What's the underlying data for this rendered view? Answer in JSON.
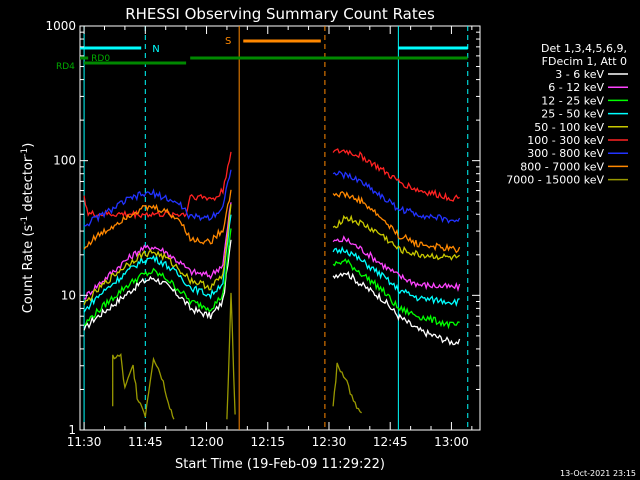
{
  "chart_data": {
    "type": "line",
    "title": "RHESSI Observing Summary Count Rates",
    "xlabel": "Start Time (19-Feb-09 11:29:22)",
    "ylabel": "Count Rate (s",
    "ylabel_sup": "-1",
    "ylabel_tail": " detector",
    "ylabel_close": ")",
    "yscale": "log",
    "ylim": [
      1,
      1000
    ],
    "xlim": [
      "11:29",
      "13:07"
    ],
    "y_ticks": [
      "1",
      "10",
      "100",
      "1000"
    ],
    "x_ticks": [
      "11:30",
      "11:45",
      "12:00",
      "12:15",
      "12:30",
      "12:45",
      "13:00"
    ],
    "legend": {
      "position": "right",
      "header": [
        "Det 1,3,4,5,6,9,",
        "FDecim 1, Att 0"
      ]
    },
    "series": [
      {
        "name": "3 - 6 keV",
        "color": "#ffffff",
        "values": [
          [
            "11:30",
            5.5
          ],
          [
            "11:32",
            6.5
          ],
          [
            "11:36",
            8
          ],
          [
            "11:40",
            10
          ],
          [
            "11:44",
            12.5
          ],
          [
            "11:47",
            13.5
          ],
          [
            "11:50",
            12
          ],
          [
            "11:54",
            9.5
          ],
          [
            "11:56",
            8
          ],
          [
            "12:01",
            7
          ],
          [
            "12:04",
            9
          ],
          [
            "12:06",
            25
          ],
          [
            "12:08",
            null
          ],
          [
            "12:31",
            14
          ],
          [
            "12:34",
            15
          ],
          [
            "12:38",
            12
          ],
          [
            "12:43",
            9.5
          ],
          [
            "12:47",
            7
          ],
          [
            "12:52",
            5.5
          ],
          [
            "13:00",
            4.5
          ],
          [
            "13:02",
            4.5
          ]
        ]
      },
      {
        "name": "6 - 12 keV",
        "color": "#ff44ff",
        "values": [
          [
            "11:30",
            9.5
          ],
          [
            "11:32",
            11
          ],
          [
            "11:36",
            14
          ],
          [
            "11:40",
            18
          ],
          [
            "11:44",
            22
          ],
          [
            "11:47",
            23
          ],
          [
            "11:50",
            21
          ],
          [
            "11:54",
            17
          ],
          [
            "11:56",
            15
          ],
          [
            "12:01",
            14
          ],
          [
            "12:04",
            17
          ],
          [
            "12:06",
            50
          ],
          [
            "12:08",
            null
          ],
          [
            "12:31",
            25
          ],
          [
            "12:34",
            26
          ],
          [
            "12:38",
            22
          ],
          [
            "12:43",
            17
          ],
          [
            "12:47",
            14
          ],
          [
            "12:52",
            12
          ],
          [
            "13:00",
            11.5
          ],
          [
            "13:02",
            11.5
          ]
        ]
      },
      {
        "name": "12 - 25 keV",
        "color": "#00ff00",
        "values": [
          [
            "11:30",
            6
          ],
          [
            "11:32",
            7
          ],
          [
            "11:36",
            9
          ],
          [
            "11:40",
            11.5
          ],
          [
            "11:44",
            14
          ],
          [
            "11:47",
            15
          ],
          [
            "11:50",
            13.5
          ],
          [
            "11:54",
            10.5
          ],
          [
            "11:56",
            9
          ],
          [
            "12:01",
            8
          ],
          [
            "12:04",
            10
          ],
          [
            "12:06",
            30
          ],
          [
            "12:08",
            null
          ],
          [
            "12:31",
            17
          ],
          [
            "12:34",
            18
          ],
          [
            "12:38",
            14.5
          ],
          [
            "12:43",
            11
          ],
          [
            "12:47",
            8
          ],
          [
            "12:52",
            7
          ],
          [
            "13:00",
            6
          ],
          [
            "13:02",
            6
          ]
        ]
      },
      {
        "name": "25 - 50 keV",
        "color": "#00ffff",
        "values": [
          [
            "11:30",
            7.5
          ],
          [
            "11:32",
            9
          ],
          [
            "11:36",
            11.5
          ],
          [
            "11:40",
            14.5
          ],
          [
            "11:44",
            18
          ],
          [
            "11:47",
            19
          ],
          [
            "11:50",
            17
          ],
          [
            "11:54",
            13.5
          ],
          [
            "11:56",
            11.5
          ],
          [
            "12:01",
            10
          ],
          [
            "12:04",
            12.5
          ],
          [
            "12:06",
            40
          ],
          [
            "12:08",
            null
          ],
          [
            "12:31",
            21
          ],
          [
            "12:34",
            22
          ],
          [
            "12:38",
            18
          ],
          [
            "12:43",
            14
          ],
          [
            "12:47",
            11
          ],
          [
            "12:52",
            9.5
          ],
          [
            "13:00",
            9
          ],
          [
            "13:02",
            9
          ]
        ]
      },
      {
        "name": "50 - 100 keV",
        "color": "#c8c800",
        "values": [
          [
            "11:30",
            8.5
          ],
          [
            "11:32",
            10
          ],
          [
            "11:36",
            13
          ],
          [
            "11:40",
            16.5
          ],
          [
            "11:44",
            20
          ],
          [
            "11:47",
            21
          ],
          [
            "11:50",
            19
          ],
          [
            "11:54",
            15
          ],
          [
            "11:56",
            13
          ],
          [
            "12:01",
            11.5
          ],
          [
            "12:04",
            14
          ],
          [
            "12:06",
            45
          ],
          [
            "12:08",
            null
          ],
          [
            "12:31",
            32
          ],
          [
            "12:34",
            38
          ],
          [
            "12:38",
            34
          ],
          [
            "12:43",
            28
          ],
          [
            "12:47",
            22
          ],
          [
            "12:52",
            20
          ],
          [
            "13:00",
            19
          ],
          [
            "13:02",
            19
          ]
        ]
      },
      {
        "name": "100 - 300 keV",
        "color": "#ff2222",
        "values": [
          [
            "11:30",
            55
          ],
          [
            "11:31",
            40
          ],
          [
            "11:36",
            40
          ],
          [
            "11:40",
            40
          ],
          [
            "11:45",
            40
          ],
          [
            "11:50",
            40
          ],
          [
            "11:55",
            40
          ],
          [
            "11:56",
            55
          ],
          [
            "12:02",
            52
          ],
          [
            "12:04",
            60
          ],
          [
            "12:06",
            120
          ],
          [
            "12:08",
            null
          ],
          [
            "12:31",
            115
          ],
          [
            "12:34",
            118
          ],
          [
            "12:38",
            108
          ],
          [
            "12:43",
            85
          ],
          [
            "12:47",
            70
          ],
          [
            "12:52",
            60
          ],
          [
            "13:00",
            53
          ],
          [
            "13:02",
            53
          ]
        ]
      },
      {
        "name": "300 - 800 keV",
        "color": "#2233ff",
        "values": [
          [
            "11:30",
            33
          ],
          [
            "11:32",
            36
          ],
          [
            "11:36",
            42
          ],
          [
            "11:40",
            50
          ],
          [
            "11:44",
            56
          ],
          [
            "11:47",
            57
          ],
          [
            "11:50",
            53
          ],
          [
            "11:54",
            46
          ],
          [
            "11:56",
            38
          ],
          [
            "12:01",
            38
          ],
          [
            "12:04",
            45
          ],
          [
            "12:06",
            90
          ],
          [
            "12:08",
            null
          ],
          [
            "12:31",
            80
          ],
          [
            "12:34",
            78
          ],
          [
            "12:38",
            70
          ],
          [
            "12:43",
            54
          ],
          [
            "12:47",
            44
          ],
          [
            "12:52",
            40
          ],
          [
            "13:00",
            36
          ],
          [
            "13:02",
            36
          ]
        ]
      },
      {
        "name": "800 - 7000 keV",
        "color": "#ff8800",
        "values": [
          [
            "11:30",
            22
          ],
          [
            "11:32",
            26
          ],
          [
            "11:36",
            31
          ],
          [
            "11:40",
            38
          ],
          [
            "11:44",
            44
          ],
          [
            "11:47",
            45
          ],
          [
            "11:50",
            42
          ],
          [
            "11:54",
            35
          ],
          [
            "11:56",
            26
          ],
          [
            "12:01",
            25
          ],
          [
            "12:04",
            31
          ],
          [
            "12:06",
            60
          ],
          [
            "12:08",
            null
          ],
          [
            "12:31",
            57
          ],
          [
            "12:34",
            56
          ],
          [
            "12:38",
            50
          ],
          [
            "12:43",
            37
          ],
          [
            "12:47",
            28
          ],
          [
            "12:52",
            24
          ],
          [
            "13:00",
            22
          ],
          [
            "13:02",
            22
          ]
        ]
      },
      {
        "name": "7000 - 15000 keV",
        "color": "#999900",
        "values": [
          [
            "11:37",
            1.5
          ],
          [
            "11:37",
            3.5
          ],
          [
            "11:39",
            3.5
          ],
          [
            "11:40",
            2
          ],
          [
            "11:42",
            3
          ],
          [
            "11:43",
            1.8
          ],
          [
            "11:45",
            1.3
          ],
          [
            "11:47",
            3.5
          ],
          [
            "11:49",
            2.5
          ],
          [
            "11:51",
            1.5
          ],
          [
            "11:52",
            1.2
          ],
          [
            "11:53",
            null
          ],
          [
            "12:05",
            1.2
          ],
          [
            "12:06",
            10
          ],
          [
            "12:07",
            1.3
          ],
          [
            "12:08",
            null
          ],
          [
            "12:31",
            1.5
          ],
          [
            "12:32",
            3
          ],
          [
            "12:34",
            2.5
          ],
          [
            "12:36",
            1.6
          ],
          [
            "12:38",
            1.3
          ],
          [
            "12:39",
            null
          ]
        ]
      }
    ],
    "annotations": {
      "N_label": "N",
      "S_label": "S",
      "rdo_label": "RD0",
      "rd4_label": "RD4",
      "timestamp": "13-Oct-2021 23:15"
    },
    "night_intervals": [
      [
        "11:29",
        "11:45"
      ],
      [
        "12:47",
        "13:04"
      ]
    ],
    "saa_interval": [
      "12:08",
      "12:29"
    ],
    "vlines_solid": [
      {
        "t": "12:08",
        "color": "#ff8800"
      },
      {
        "t": "11:30",
        "color": "#00ffff"
      },
      {
        "t": "12:47",
        "color": "#00ffff"
      }
    ],
    "vlines_dashed": [
      {
        "t": "11:45",
        "color": "#00ffff"
      },
      {
        "t": "12:29",
        "color": "#ff8800"
      },
      {
        "t": "13:04",
        "color": "#00ffff"
      }
    ],
    "rdo_segments": [
      [
        "11:29",
        "11:31"
      ]
    ],
    "rd4_segments": [
      [
        "11:30",
        "11:55"
      ],
      [
        "11:56",
        "13:04"
      ]
    ],
    "n_segments": [
      [
        "11:29",
        "11:44"
      ],
      [
        "12:47",
        "13:04"
      ]
    ],
    "s_segments": [
      [
        "12:09",
        "12:28"
      ]
    ]
  }
}
